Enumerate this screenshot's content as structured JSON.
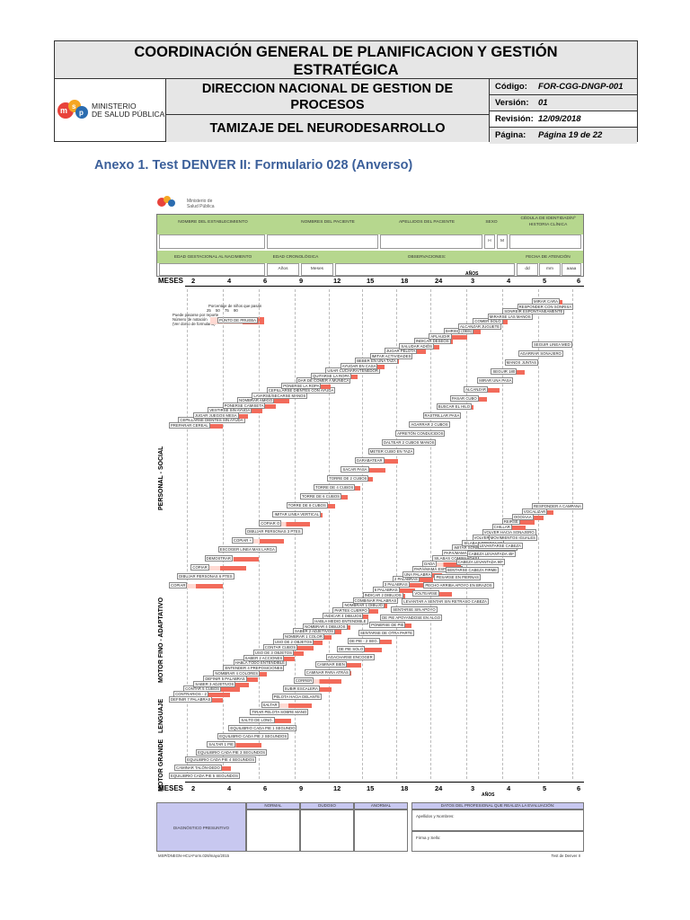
{
  "header": {
    "title_line1": "COORDINACIÓN GENERAL DE PLANIFICACION Y GESTIÓN",
    "title_line2": "ESTRATÉGICA",
    "logo_text_line1": "MINISTERIO",
    "logo_text_line2": "DE SALUD PÚBLICA",
    "dept_line1": "DIRECCION NACIONAL DE GESTION DE",
    "dept_line2": "PROCESOS",
    "subtitle": "TAMIZAJE DEL NEURODESARROLLO",
    "codigo_label": "Código:",
    "codigo_value": "FOR-CGG-DNGP-001",
    "version_label": "Versión:",
    "version_value": "01",
    "revision_label": "Revisión:",
    "revision_value": "12/09/2018",
    "pagina_label": "Página:",
    "pagina_value": "Página 19 de 22"
  },
  "annex_title": "Anexo 1. Test DENVER II: Formulario 028 (Anverso)",
  "form": {
    "logo_label": "Ministerio de Salud Pública",
    "fields": {
      "establecimiento": "NOMBRE DEL ESTABLECIMIENTO",
      "nombres": "NOMBRES DEL PACIENTE",
      "apellidos": "APELLIDOS DEL PACIENTE",
      "sexo": "SEXO",
      "cedula": "CÉDULA DE IDENTIDAD/Nº HISTORIA CLÍNICA",
      "h": "H",
      "m": "M",
      "edad_gest": "EDAD GESTACIONAL AL NACIMIENTO",
      "edad_crono": "EDAD CRONOLÓGICA",
      "observaciones": "OBSERVACIONES:",
      "fecha": "FECHA DE ATENCIÓN",
      "anos": "Años",
      "meses": "Meses",
      "dd": "dd",
      "mm": "mm",
      "aaaa": "aaaa"
    },
    "scale_meses": "MESES",
    "scale_anos": "AÑOS",
    "month_ticks": [
      "2",
      "4",
      "6",
      "9",
      "12",
      "15",
      "18",
      "24"
    ],
    "year_ticks": [
      "3",
      "4",
      "5",
      "6"
    ],
    "legend_title": "Porcentaje de niños que pasan",
    "legend_values": [
      "25",
      "50",
      "75",
      "90"
    ],
    "legend_note1": "Puede pasarse por reporte",
    "legend_note2": "Número de notación",
    "legend_note3": "(Ver dorso de formulario)",
    "legend_example": "PUNTO DE PRUEBA",
    "sections": [
      "PERSONAL - SOCIAL",
      "MOTOR FINO - ADAPTATIVO",
      "LENGUAJE",
      "MOTOR GRANDE"
    ],
    "tasks": [
      "PREPARAR CEREAL",
      "CEPILLARSE DIENTES SIN AYUDA",
      "JUGAR JUEGOS MESA",
      "VESTIRSE SIN AYUDA",
      "PONERSE CAMISETA",
      "NOMBRAR AMIGO",
      "LAVARSE/SECARSE MANOS",
      "CEPILLARSE DIENTES CON AYUDA",
      "PONERSE LA ROPA",
      "DAR DE COMER A MUÑECA",
      "QUITARSE LA ROPA",
      "USAR CUCHARA/TENEDOR",
      "AYUDAR EN CASA",
      "BEBER EN UNA TAZA",
      "IMITAR ACTIVIDADES",
      "JUGAR PELOTA",
      "SALUDAR ADIÓS",
      "INDICAR DESEOS",
      "APLAUDIR",
      "SHRISQ (OBS)",
      "ALCANZAR JUGUETE",
      "COMER SOLO",
      "MIRARSE LAS MANOS",
      "SONREIR ESPONTÁNEAMENTE",
      "RESPONDER CON SONRISA",
      "MIRAR CARA",
      "COPIAR",
      "DIBUJAR PERSONAS 6 PTES",
      "COPIAR",
      "DEMOSTRAR",
      "ESCOGER LINEA MAS LARGA",
      "COPIAR +",
      "DIBUJAR PERSONAS 3 PTES",
      "COPIAR O",
      "IMITAR LINEA VERTICAL",
      "TORRE DE 8 CUBOS",
      "TORRE DE 6 CUBOS",
      "TORRE DE 4 CUBOS",
      "TORRE DE 2 CUBOS",
      "SACAR PASA",
      "GARABATEAR",
      "METER CUBO EN TAZA",
      "DALTEAR 2 CUBOS MANOS",
      "APRETÓN CONDUCIDOS",
      "AGARRAR 2 CUBOS",
      "RASTRILLAR PASA",
      "BUSCAR EL HILO",
      "PASAR CUBO",
      "ALCANZAR",
      "MIRAR UNA PASA",
      "SEGUIR 180",
      "MANOS JUNTAS",
      "AGARRAR SONAJERO",
      "SEGUIR LINEA MED",
      "DEFINIR 7 PALABRAS",
      "CONTRARIOS - 2",
      "CONTAR 5 CUBOS",
      "SABER 3 ADJETIVOS",
      "DEFINIR 5 PALABRAS",
      "NOMBRAR 4 COLORES",
      "ENTENDER 4 PREPOSICIONES",
      "HABLA TODO ENTENDIBLE",
      "SABER 2 ACCIONES",
      "USO DE 3 OBJETOS",
      "CONTAR CUBOS",
      "USO DE 2 OBJETOS",
      "NOMBRAR 1 COLOR",
      "SABER 2 ADJETIVOS",
      "NOMBRAR 4 DIBUJOS",
      "HABLA MEDIO ENTENDIBLE",
      "INDICAR 4 DIBUJOS",
      "PARTES CUERPO",
      "NOMBRAR 1 DIBUJO",
      "COMBINAR PALABRAS",
      "INDICAR 2 DIBUJOS",
      "6 PALABRAS",
      "3 PALABRAS",
      "2 PALABRAS",
      "UNA PALABRA",
      "PAPÁ/MAMÁ ESPECÍFICO",
      "DADA",
      "SILABAS COMBINADAS",
      "PAPÁ/MAMÁ NO ESPECÍFICO",
      "IMITAR SONIDOS DEL LENGUAJE",
      "SÍLABAS SENCILLAS",
      "VOLVER HACIA VOZ",
      "VOLVER HACIA SONAJERO",
      "CHILLAR",
      "REIRSE",
      "OOO/AAA",
      "VOCALIZAR",
      "RESPONDER A CAMPANA",
      "EQUILIBRIO CADA PIE 5 SEGUNDOS",
      "CAMINAR TALÓN-DEDO",
      "EQUILIBRIO CADA PIE 4 SEGUNDOS",
      "EQUILIBRIO CADA PIE 3 SEGUNDOS",
      "SALTAR 1 PIE",
      "EQUILIBRIO CADA PIE 2 SEGUNDOS",
      "EQUILIBRIO CADA PIE 1 SEGUNDO",
      "SALTO DE LONG.",
      "TIRAR PELOTA SOBRE MANO",
      "SALTAR",
      "PELOTA HACIA DELANTE",
      "SUBIR ESCALERA",
      "CORRER",
      "CAMINAR PARA ATRÁS",
      "CAMINAR BIEN",
      "AGACHARSE ENCOGER",
      "DE PIE SOLO",
      "DE PIE - 2 SEG.",
      "SENTARSE DE OTRA PARTE",
      "PONERSE DE PIE",
      "DE PIE APOYANDOSE EN ALGO",
      "SENTARSE SIN APOYO",
      "LEVANTAR A SENTAR SIN RETRASO CABEZA",
      "VOLTEARSE",
      "PECHO ARRIBA APOYO EN BRAZOS",
      "PESARSE EN PIERNAS",
      "SENTARSE CABEZA FIRME",
      "CABEZA LEVANTADA 90º",
      "CABEZA LEVANTADA 45º",
      "LEVANTARSE CABEZA",
      "MOVIMIENTOS IGUALES"
    ],
    "diagnostico_label": "DIAGNÓSTICO PRESUNTIVO",
    "col_normal": "NORMAL",
    "col_dudoso": "DUDOSO",
    "col_anormal": "ANORMAL",
    "prof_title": "DATOS DEL PROFESIONAL QUE REALIZA LA EVALUACIÓN:",
    "prof_nombre": "Apellidos y Nombres:",
    "prof_firma": "Firma y Sello:",
    "footer_left": "MSP/DNEGN-HCU-Form.028/mayo/2015",
    "footer_right": "Test de Denver II",
    "colors": {
      "green": "#b6d78e",
      "task_dark": "#f26b5b",
      "task_light": "#ffd9d2",
      "annex_blue": "#3b5f9a"
    }
  }
}
